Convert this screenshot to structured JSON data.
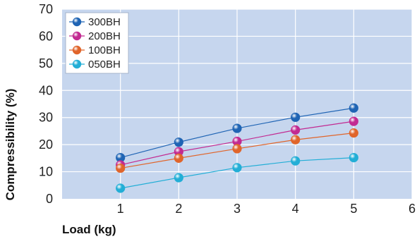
{
  "chart_data": {
    "type": "line",
    "title": "",
    "xlabel": "Load (kg)",
    "ylabel": "Compressibility (%)",
    "xlim": [
      0,
      6
    ],
    "ylim": [
      0,
      70
    ],
    "x_ticks": [
      0,
      1,
      2,
      3,
      4,
      5,
      6
    ],
    "y_ticks": [
      10,
      20,
      30,
      40,
      50,
      60,
      70
    ],
    "grid": true,
    "legend_position": "top-left",
    "x": [
      1,
      2,
      3,
      4,
      5
    ],
    "series": [
      {
        "name": "300BH",
        "color": "#1f64b4",
        "values": [
          15.2,
          20.9,
          26.0,
          30.1,
          33.5
        ]
      },
      {
        "name": "200BH",
        "color": "#c22a91",
        "values": [
          12.5,
          17.4,
          21.2,
          25.4,
          28.6
        ]
      },
      {
        "name": "100BH",
        "color": "#e0652b",
        "values": [
          11.3,
          15.0,
          18.5,
          21.8,
          24.3
        ]
      },
      {
        "name": "050BH",
        "color": "#22aed6",
        "values": [
          3.9,
          7.8,
          11.5,
          14.0,
          15.2
        ]
      }
    ],
    "plot_background": "#c6d6ee",
    "grid_color": "#ffffff"
  }
}
